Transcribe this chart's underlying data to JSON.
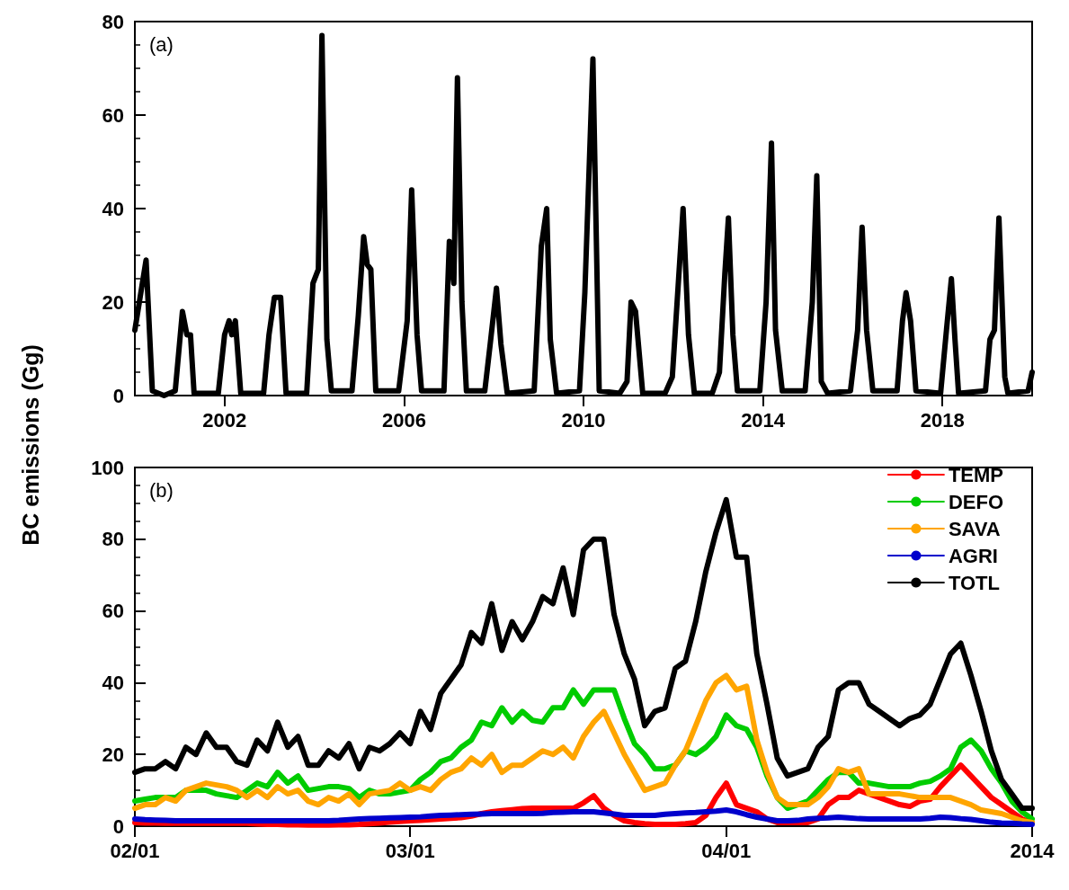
{
  "chart_data": [
    {
      "type": "line",
      "ylabel": "BC emissions (Gg)",
      "annotations": [
        "(a)"
      ],
      "xlim": [
        2000,
        2020
      ],
      "xticks": [
        2002,
        2006,
        2010,
        2014,
        2018
      ],
      "ylim": [
        0,
        80
      ],
      "yticks": [
        0,
        20,
        40,
        60,
        80
      ],
      "grid": false,
      "legend": false,
      "series": [
        {
          "color": "#000000",
          "x": [
            2000.0,
            2000.25,
            2000.39,
            2000.65,
            2000.9,
            2001.06,
            2001.16,
            2001.24,
            2001.32,
            2001.86,
            2002.0,
            2002.1,
            2002.16,
            2002.24,
            2002.36,
            2002.87,
            2002.99,
            2003.11,
            2003.25,
            2003.37,
            2003.83,
            2003.97,
            2004.09,
            2004.17,
            2004.28,
            2004.38,
            2004.84,
            2004.98,
            2005.1,
            2005.18,
            2005.26,
            2005.37,
            2005.88,
            2006.07,
            2006.17,
            2006.29,
            2006.39,
            2006.89,
            2007.01,
            2007.11,
            2007.19,
            2007.29,
            2007.39,
            2007.8,
            2007.92,
            2008.06,
            2008.16,
            2008.3,
            2008.9,
            2009.06,
            2009.18,
            2009.26,
            2009.4,
            2009.91,
            2010.03,
            2010.21,
            2010.35,
            2010.81,
            2010.97,
            2011.06,
            2011.16,
            2011.32,
            2011.82,
            2011.98,
            2012.12,
            2012.22,
            2012.34,
            2012.47,
            2012.87,
            2013.03,
            2013.15,
            2013.23,
            2013.33,
            2013.43,
            2013.93,
            2014.07,
            2014.19,
            2014.28,
            2014.43,
            2014.94,
            2015.1,
            2015.2,
            2015.3,
            2015.44,
            2015.95,
            2016.11,
            2016.21,
            2016.31,
            2016.45,
            2016.99,
            2017.11,
            2017.19,
            2017.29,
            2017.41,
            2017.96,
            2018.09,
            2018.2,
            2018.28,
            2018.36,
            2018.96,
            2019.06,
            2019.16,
            2019.26,
            2019.39,
            2019.46,
            2019.91,
            2020.0
          ],
          "values": [
            14,
            29,
            1,
            0,
            1,
            18,
            13,
            13,
            0.5,
            0.5,
            13,
            16,
            13,
            16,
            0.5,
            0.5,
            13,
            21,
            21,
            0.5,
            0.5,
            24,
            27,
            77,
            12,
            1,
            1,
            17,
            34,
            28,
            27,
            1,
            1,
            16,
            44,
            13,
            1,
            1,
            33,
            24,
            68,
            20,
            1,
            1,
            11,
            23,
            11,
            0.5,
            1,
            32,
            40,
            12,
            0.5,
            1,
            22,
            72,
            1,
            0.5,
            3,
            20,
            18,
            0.5,
            0.5,
            4,
            25,
            40,
            13,
            0.5,
            0.5,
            5,
            26,
            38,
            13,
            1,
            1,
            20,
            54,
            14,
            1,
            1,
            20,
            47,
            3,
            0.5,
            1,
            14,
            36,
            14,
            1,
            1,
            16,
            22,
            16,
            1,
            0.5,
            14,
            25,
            12,
            0.5,
            1,
            12,
            14,
            38,
            4,
            0.5,
            1,
            5
          ]
        }
      ]
    },
    {
      "type": "line",
      "annotations": [
        "(b)"
      ],
      "categories": [
        "02/01",
        null,
        null,
        null,
        null,
        null,
        null,
        null,
        null,
        null,
        null,
        null,
        null,
        null,
        null,
        null,
        null,
        null,
        null,
        null,
        null,
        null,
        null,
        null,
        null,
        null,
        null,
        "03/01",
        null,
        null,
        null,
        null,
        null,
        null,
        null,
        null,
        null,
        null,
        null,
        null,
        null,
        null,
        null,
        null,
        null,
        null,
        null,
        null,
        null,
        null,
        null,
        null,
        null,
        null,
        null,
        null,
        null,
        null,
        "04/01",
        null,
        null,
        null,
        null,
        null,
        null,
        null,
        null,
        null,
        null,
        null,
        null,
        null,
        null,
        null,
        null,
        null,
        null,
        null,
        null,
        null,
        null,
        null,
        null,
        null,
        null,
        null,
        null,
        null,
        "2014"
      ],
      "ylim": [
        0,
        100
      ],
      "yticks": [
        0,
        20,
        40,
        60,
        80,
        100
      ],
      "grid": false,
      "legend": "top right",
      "series": [
        {
          "name": "TEMP",
          "color": "#ff0000",
          "values": [
            1,
            0.9,
            0.9,
            0.8,
            0.8,
            0.8,
            0.8,
            0.8,
            0.8,
            0.8,
            0.8,
            0.8,
            0.6,
            0.5,
            0.5,
            0.4,
            0.4,
            0.3,
            0.3,
            0.3,
            0.4,
            0.4,
            0.5,
            0.7,
            0.9,
            1.1,
            1.3,
            1.5,
            1.6,
            1.8,
            2,
            2.2,
            2.4,
            2.8,
            3.5,
            4,
            4.3,
            4.6,
            4.9,
            5,
            5,
            5,
            5,
            5,
            6.5,
            8.5,
            5,
            3,
            1.5,
            1,
            0.7,
            0.5,
            0.5,
            0.5,
            0.7,
            1,
            3,
            8,
            12,
            6,
            5,
            4,
            2,
            1,
            1,
            1,
            1,
            2,
            6,
            8,
            8,
            10,
            9,
            8,
            7,
            6,
            5.5,
            7,
            7.5,
            11,
            14,
            17,
            14,
            11,
            8,
            6,
            4,
            2,
            1
          ]
        },
        {
          "name": "DEFO",
          "color": "#00cc00",
          "values": [
            7,
            7.5,
            8,
            8,
            8,
            10,
            10,
            10,
            9,
            8.5,
            8,
            10,
            12,
            11,
            15,
            12,
            14,
            10,
            10.5,
            11,
            11,
            10.5,
            8,
            10,
            9,
            9,
            9.5,
            10,
            13,
            15,
            18,
            19,
            22,
            24,
            29,
            28,
            33,
            29,
            32,
            29.5,
            29,
            33,
            33,
            38,
            34,
            38,
            38,
            38,
            30,
            23,
            20,
            16,
            16,
            17,
            21,
            20,
            22,
            25,
            31,
            28,
            27,
            22,
            14,
            8,
            5,
            6,
            7,
            10,
            13,
            15,
            15,
            12,
            12,
            11.5,
            11,
            11,
            11,
            12,
            12.5,
            14,
            16,
            22,
            24,
            21,
            16,
            12,
            7,
            4,
            2
          ]
        },
        {
          "name": "SAVA",
          "color": "#ffa500",
          "values": [
            5,
            6,
            6,
            8,
            7,
            10,
            11,
            12,
            11.5,
            11,
            10,
            8,
            10,
            8,
            11,
            9,
            10,
            7,
            6,
            8,
            7,
            9,
            6,
            9,
            9.5,
            10,
            12,
            10,
            11,
            10,
            13,
            15,
            16,
            19,
            17,
            20,
            15,
            17,
            17,
            19,
            21,
            20,
            22,
            19,
            25,
            29,
            32,
            26,
            20,
            15,
            10,
            11,
            12,
            17,
            21,
            28,
            35,
            40,
            42,
            38,
            39,
            24,
            15,
            8,
            6,
            6,
            6,
            8,
            11,
            16,
            15,
            16,
            9,
            9,
            9,
            9,
            8.5,
            8,
            8,
            8,
            8,
            7,
            6,
            4.5,
            4,
            3.5,
            2.5,
            1.5,
            1
          ]
        },
        {
          "name": "AGRI",
          "color": "#0000cc",
          "values": [
            2,
            1.8,
            1.7,
            1.6,
            1.5,
            1.5,
            1.5,
            1.5,
            1.5,
            1.5,
            1.5,
            1.5,
            1.5,
            1.5,
            1.5,
            1.5,
            1.5,
            1.5,
            1.5,
            1.5,
            1.6,
            1.8,
            2,
            2.1,
            2.2,
            2.3,
            2.4,
            2.5,
            2.6,
            2.8,
            3,
            3.1,
            3.2,
            3.3,
            3.4,
            3.5,
            3.5,
            3.5,
            3.5,
            3.5,
            3.6,
            3.8,
            3.9,
            4,
            4,
            4,
            3.7,
            3.4,
            3,
            3,
            3,
            3,
            3.3,
            3.5,
            3.7,
            3.8,
            4,
            4.2,
            4.5,
            4,
            3.2,
            2.5,
            2,
            1.5,
            1.5,
            1.6,
            2,
            2.2,
            2.3,
            2.5,
            2.3,
            2.1,
            2,
            2,
            2,
            2,
            2,
            2,
            2.2,
            2.5,
            2.4,
            2.1,
            1.9,
            1.5,
            1.1,
            0.9,
            0.8,
            0.6,
            0.5
          ]
        },
        {
          "name": "TOTL",
          "color": "#000000",
          "values": [
            15,
            16,
            16,
            18,
            16,
            22,
            20,
            26,
            22,
            22,
            18,
            17,
            24,
            21,
            29,
            22,
            25,
            17,
            17,
            21,
            19,
            23,
            16,
            22,
            21,
            23,
            26,
            23,
            32,
            27,
            37,
            41,
            45,
            54,
            51,
            62,
            49,
            57,
            52,
            57,
            64,
            62,
            72,
            59,
            77,
            80,
            80,
            59,
            48,
            41,
            28,
            32,
            33,
            44,
            46,
            57,
            71,
            82,
            91,
            75,
            75,
            48,
            34,
            19,
            14,
            15,
            16,
            22,
            25,
            38,
            40,
            40,
            34,
            32,
            30,
            28,
            30,
            31,
            34,
            41,
            48,
            51,
            42,
            32,
            21,
            13,
            9,
            5,
            5
          ]
        }
      ]
    }
  ]
}
